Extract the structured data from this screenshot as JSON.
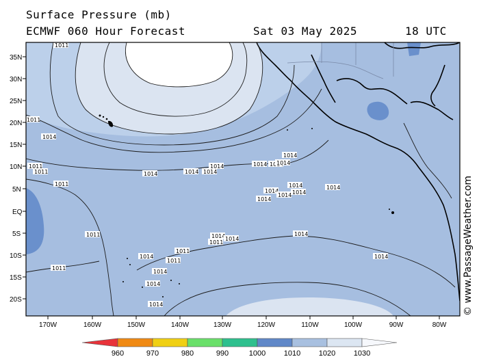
{
  "header": {
    "title": "Surface Pressure (mb)",
    "model": "ECMWF 060 Hour Forecast",
    "date": "Sat 03 May 2025",
    "time": "18 UTC"
  },
  "credit": "© www.PassageWeather.com",
  "lat_labels": [
    "35N",
    "30N",
    "25N",
    "20N",
    "15N",
    "10N",
    "5N",
    "EQ",
    "5S",
    "10S",
    "15S",
    "20S"
  ],
  "lon_labels": [
    "170W",
    "160W",
    "150W",
    "140W",
    "130W",
    "120W",
    "110W",
    "100W",
    "90W",
    "80W"
  ],
  "colorbar": {
    "labels": [
      "960",
      "970",
      "980",
      "990",
      "1000",
      "1010",
      "1020",
      "1030"
    ],
    "colors": [
      "#e8333a",
      "#f08a14",
      "#f0d014",
      "#6ae06a",
      "#2ec08e",
      "#6088c8",
      "#a8c0e0",
      "#dce6f2"
    ]
  },
  "map_colors": {
    "sea_1010": "#a6bee0",
    "band_1020": "#bcd0ea",
    "high_1024": "#dbe4f1",
    "high_core": "#ffffff",
    "low": "#6a90cc",
    "land": "#9fb6d8",
    "contour": "#1a1a1a"
  },
  "isobar_labels": [
    "1011",
    "1011",
    "1014",
    "1014",
    "1014",
    "1014",
    "1014",
    "1014",
    "1014",
    "1014",
    "1014",
    "1011",
    "1011",
    "1014",
    "1014",
    "1014",
    "1014",
    "1014",
    "1014",
    "1011",
    "1011",
    "1014",
    "1014",
    "1011",
    "1014",
    "1014",
    "1011",
    "1011",
    "1014",
    "1014",
    "1014",
    "1011",
    "1014"
  ]
}
